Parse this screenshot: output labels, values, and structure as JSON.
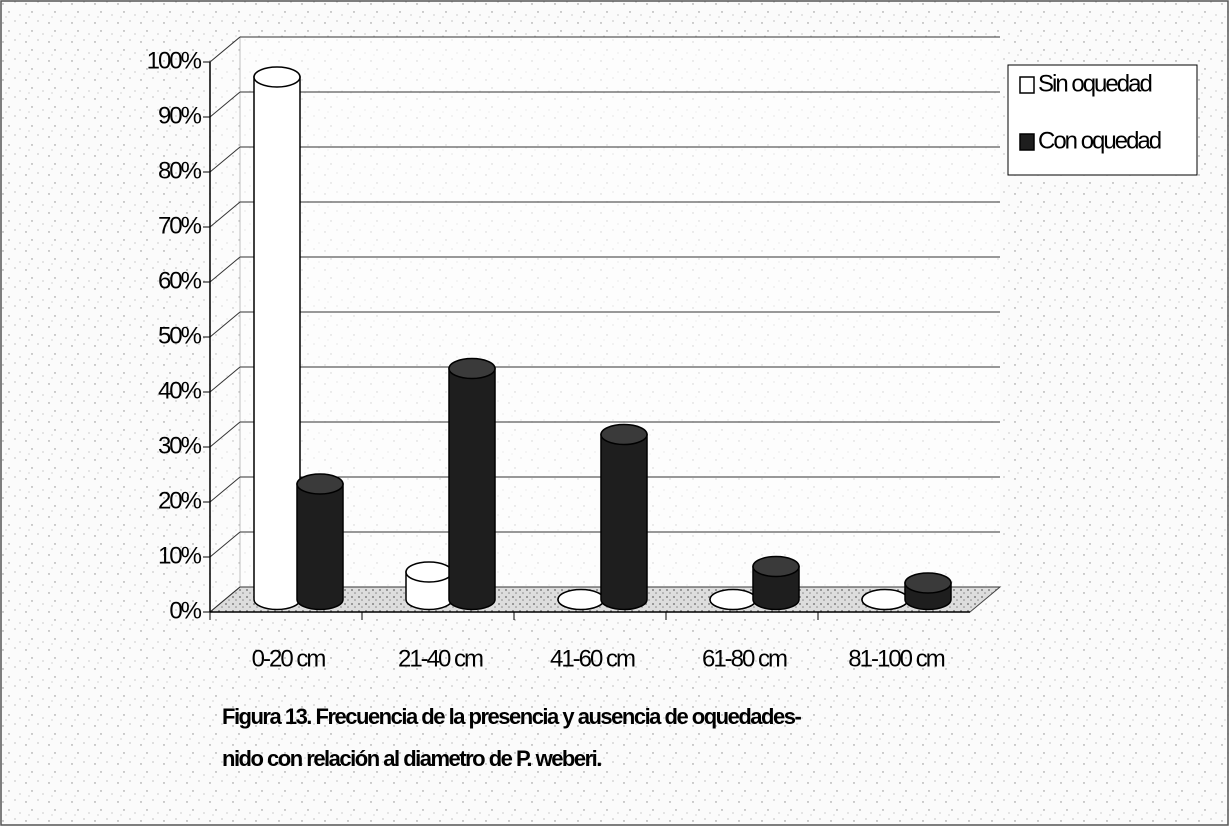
{
  "chart_data": {
    "type": "bar3d",
    "categories": [
      "0-20 cm",
      "21-40 cm",
      "41-60 cm",
      "61-80 cm",
      "81-100 cm"
    ],
    "series": [
      {
        "name": "Sin oquedad",
        "color": "#ffffff",
        "values": [
          95,
          5,
          0,
          0,
          0
        ]
      },
      {
        "name": "Con oquedad",
        "color": "#1e1e1e",
        "values": [
          21,
          42,
          30,
          6,
          3
        ]
      }
    ],
    "ylim": [
      0,
      100
    ],
    "yticks": [
      {
        "value": 0,
        "label": "0%"
      },
      {
        "value": 10,
        "label": "10%"
      },
      {
        "value": 20,
        "label": "20%"
      },
      {
        "value": 30,
        "label": "30%"
      },
      {
        "value": 40,
        "label": "40%"
      },
      {
        "value": 50,
        "label": "50%"
      },
      {
        "value": 60,
        "label": "60%"
      },
      {
        "value": 70,
        "label": "70%"
      },
      {
        "value": 80,
        "label": "80%"
      },
      {
        "value": 90,
        "label": "90%"
      },
      {
        "value": 100,
        "label": "100%"
      }
    ],
    "grid": true,
    "legend": "top-right",
    "caption": [
      "Figura 13.   Frecuencia de la presencia y ausencia de oquedades-",
      "nido con relación al diametro de P. weberi."
    ]
  }
}
